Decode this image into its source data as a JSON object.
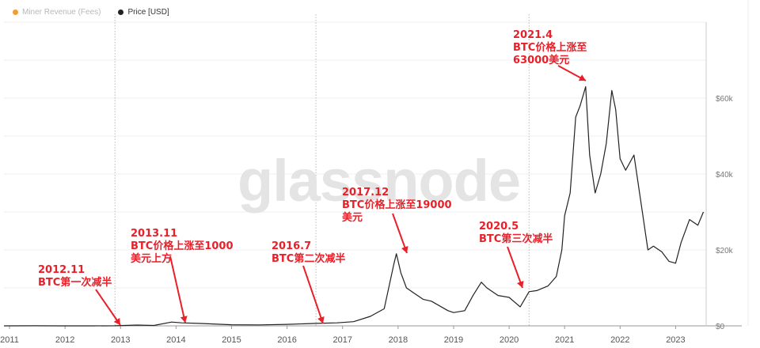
{
  "legend": {
    "fees_label": "Miner Revenue (Fees)",
    "price_label": "Price [USD]",
    "fees_color": "#f39c33",
    "price_color": "#222222"
  },
  "watermark": "glassnode",
  "annotations": {
    "halving_2012": "2012.11\nBTC第一次减半",
    "rally_2013": "2013.11\nBTC价格上涨至1000\n美元上方",
    "halving_2016": "2016.7\nBTC第二次减半",
    "peak_2017": "2017.12\nBTC价格上涨至19000\n美元",
    "halving_2020": "2020.5\nBTC第三次减半",
    "peak_2021": "2021.4\nBTC价格上涨至\n63000美元"
  },
  "colors": {
    "annotation": "#e8202a",
    "line": "#222222",
    "grid": "#efefef",
    "halving_line": "#bbbbbb"
  },
  "chart_data": {
    "type": "line",
    "title": "",
    "xlabel": "",
    "ylabel": "",
    "xlim": [
      2010.9,
      2023.55
    ],
    "ylim": [
      0,
      80000
    ],
    "x_ticks": [
      2011,
      2012,
      2013,
      2014,
      2015,
      2016,
      2017,
      2018,
      2019,
      2020,
      2021,
      2022,
      2023
    ],
    "x_tick_labels": [
      "2011",
      "2012",
      "2013",
      "2014",
      "2015",
      "2016",
      "2017",
      "2018",
      "2019",
      "2020",
      "2021",
      "2022",
      "2023"
    ],
    "y_ticks": [
      0,
      20000,
      40000,
      60000
    ],
    "y_tick_labels": [
      "$0",
      "$20k",
      "$40k",
      "$60k"
    ],
    "y_axis_position": "right",
    "grid": true,
    "legend_position": "top-left",
    "halving_markers": [
      2012.9,
      2016.52,
      2020.36
    ],
    "series": [
      {
        "name": "Price [USD]",
        "x": [
          2010.9,
          2011.45,
          2011.9,
          2012.5,
          2012.9,
          2013.3,
          2013.6,
          2013.92,
          2014.1,
          2014.5,
          2015.0,
          2015.5,
          2016.0,
          2016.52,
          2016.9,
          2017.2,
          2017.5,
          2017.75,
          2017.92,
          2017.97,
          2018.05,
          2018.15,
          2018.3,
          2018.45,
          2018.6,
          2018.9,
          2019.0,
          2019.2,
          2019.35,
          2019.5,
          2019.6,
          2019.8,
          2020.0,
          2020.2,
          2020.36,
          2020.5,
          2020.7,
          2020.85,
          2020.95,
          2021.0,
          2021.1,
          2021.2,
          2021.28,
          2021.38,
          2021.45,
          2021.55,
          2021.65,
          2021.75,
          2021.85,
          2021.92,
          2022.0,
          2022.1,
          2022.25,
          2022.4,
          2022.5,
          2022.6,
          2022.75,
          2022.88,
          2023.0,
          2023.1,
          2023.25,
          2023.4,
          2023.5
        ],
        "values": [
          1,
          15,
          3,
          6,
          12,
          200,
          100,
          1000,
          800,
          600,
          300,
          250,
          400,
          650,
          800,
          1100,
          2500,
          4500,
          16000,
          19000,
          14000,
          10000,
          8500,
          7000,
          6500,
          4000,
          3500,
          4000,
          8000,
          11500,
          10000,
          8000,
          7500,
          5000,
          9000,
          9300,
          10500,
          13000,
          20000,
          29000,
          35000,
          55000,
          58000,
          63000,
          45000,
          35000,
          40000,
          48000,
          62000,
          57000,
          44000,
          41000,
          45000,
          30000,
          20000,
          21000,
          19500,
          17000,
          16500,
          22000,
          28000,
          26500,
          30000
        ]
      }
    ]
  }
}
